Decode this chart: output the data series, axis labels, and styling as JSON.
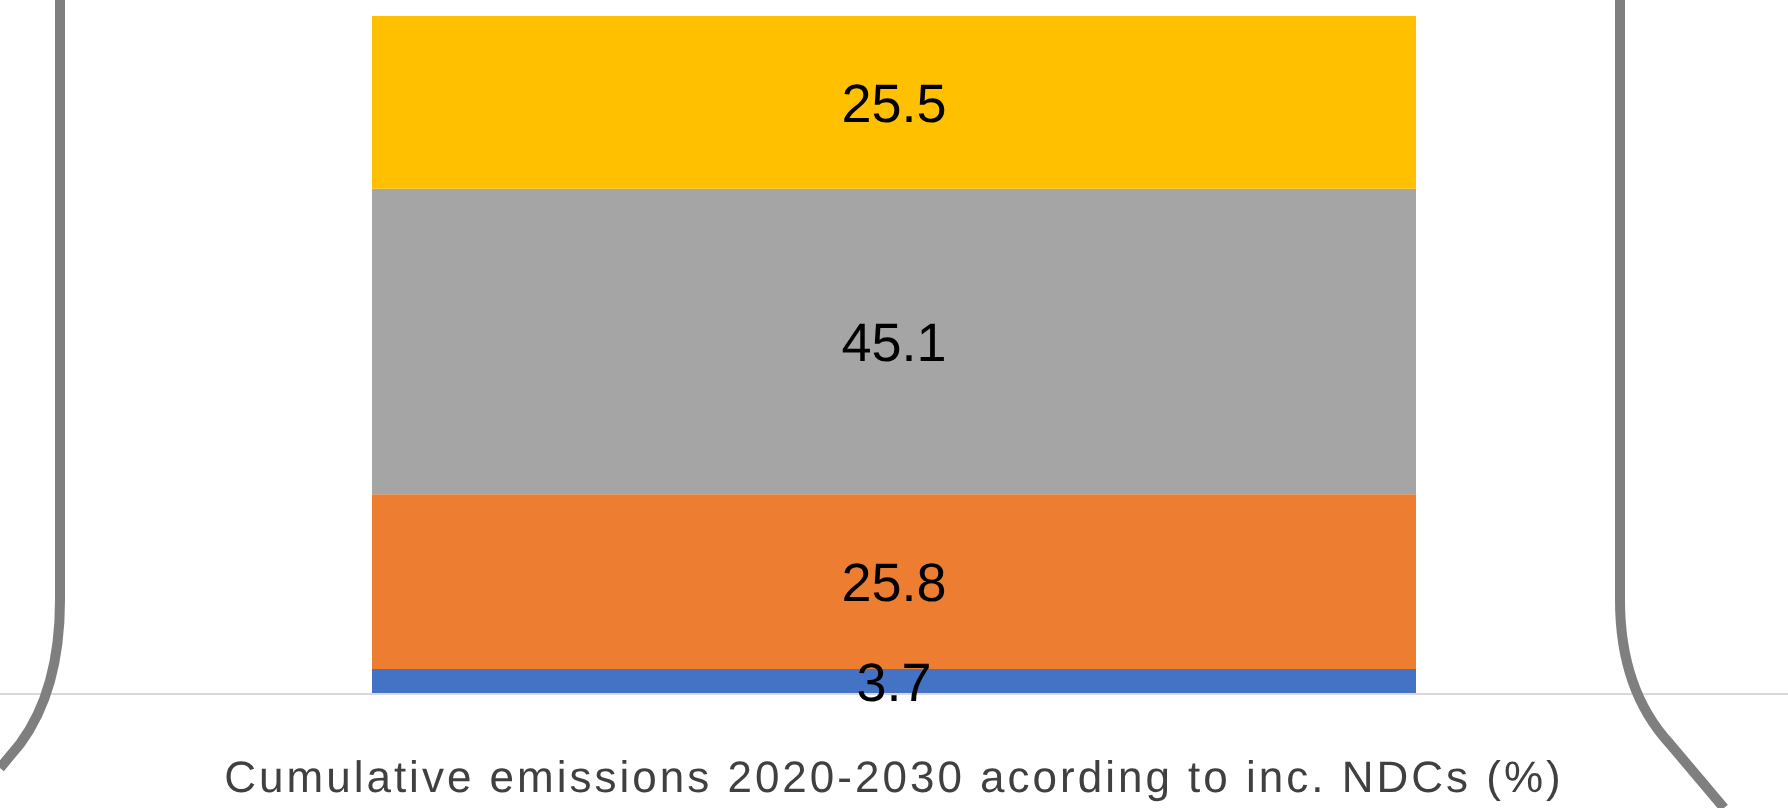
{
  "chart_data": {
    "type": "bar",
    "stacked": true,
    "data_labels": true,
    "xlabel": "Cumulative emissions 2020-2030 acording to inc. NDCs (%)",
    "categories": [
      null
    ],
    "series": [
      {
        "color": "#4472c4",
        "values": [
          3.7
        ]
      },
      {
        "color": "#ed7d31",
        "values": [
          25.8
        ]
      },
      {
        "color": "#a5a5a5",
        "values": [
          45.1
        ]
      },
      {
        "color": "#ffc000",
        "values": [
          25.5
        ]
      }
    ]
  }
}
